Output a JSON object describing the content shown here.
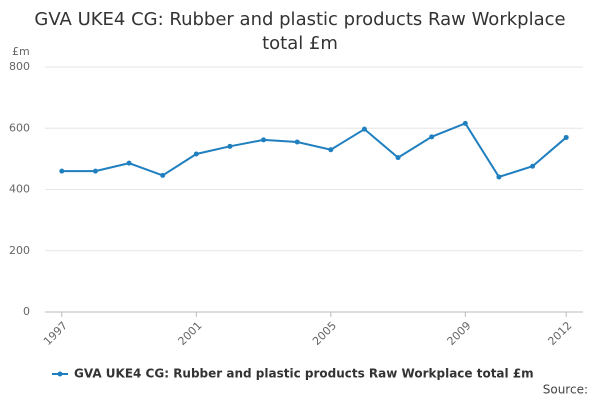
{
  "chart_data": {
    "type": "line",
    "title": "GVA UKE4 CG: Rubber and plastic products Raw Workplace total £m",
    "y_unit": "£m",
    "x": [
      1997,
      1998,
      1999,
      2000,
      2001,
      2002,
      2003,
      2004,
      2005,
      2006,
      2007,
      2008,
      2009,
      2010,
      2011,
      2012
    ],
    "series": [
      {
        "name": "GVA UKE4 CG: Rubber and plastic products Raw Workplace total £m",
        "color": "#1f7fbf",
        "values": [
          460,
          460,
          486,
          446,
          516,
          541,
          562,
          555,
          530,
          597,
          504,
          572,
          616,
          441,
          476,
          570
        ]
      }
    ],
    "xlim": [
      1996.5,
      2012.5
    ],
    "xticks": [
      1997,
      2001,
      2005,
      2009,
      2012
    ],
    "ylim": [
      0,
      800
    ],
    "yticks": [
      0,
      200,
      400,
      600,
      800
    ],
    "grid": true,
    "legend": "bottom",
    "source": "Source:"
  }
}
